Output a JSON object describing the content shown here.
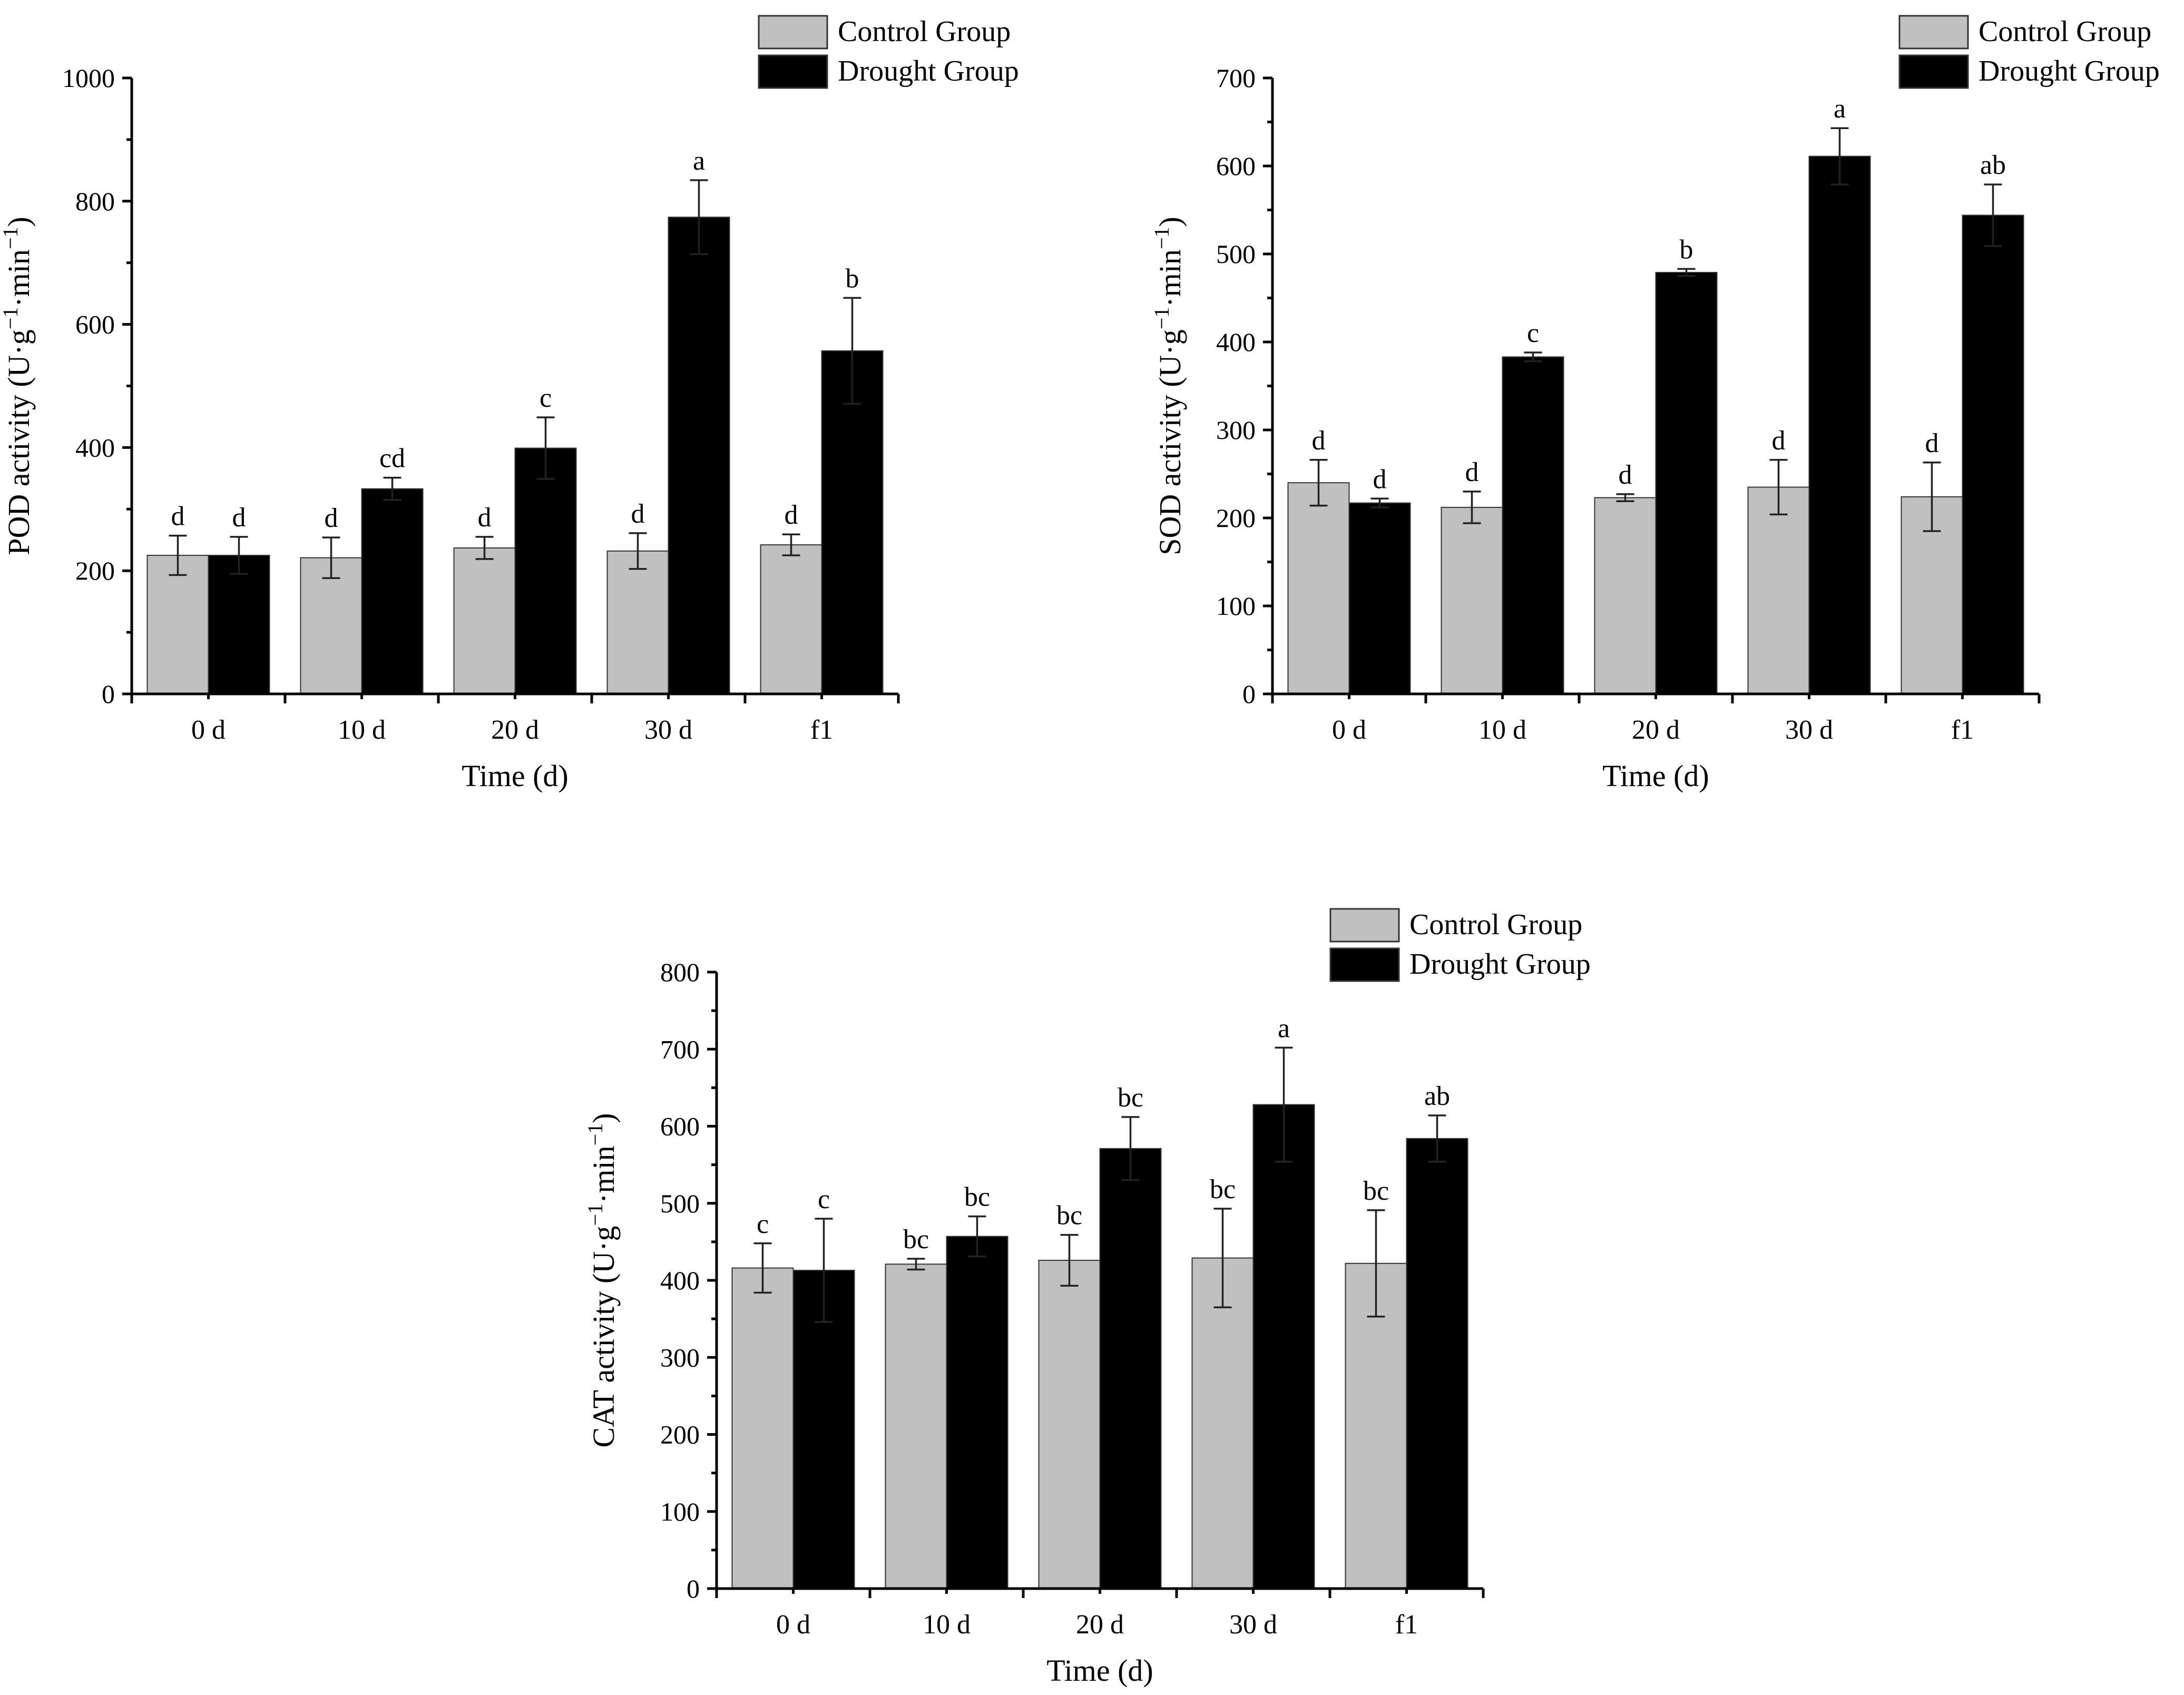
{
  "figure": {
    "legend_labels": [
      "Control Group",
      "Drought Group"
    ],
    "colors": {
      "control": "#c0c0c0",
      "drought": "#000000"
    }
  },
  "chart_data": [
    {
      "type": "bar",
      "panel": "POD",
      "categories": [
        "0 d",
        "10 d",
        "20 d",
        "30 d",
        "f1"
      ],
      "xlabel": "Time (d)",
      "ylabel": "POD activity (U·g⁻¹·min⁻¹)",
      "ylim": [
        0,
        1000
      ],
      "yticks": [
        0,
        200,
        400,
        600,
        800,
        1000
      ],
      "legend_position": "top-right",
      "series": [
        {
          "name": "Control Group",
          "values": [
            225,
            221,
            237,
            232,
            242
          ],
          "errors": [
            32,
            33,
            18,
            29,
            17
          ],
          "labels": [
            "d",
            "d",
            "d",
            "d",
            "d"
          ]
        },
        {
          "name": "Drought Group",
          "values": [
            225,
            333,
            399,
            774,
            557
          ],
          "errors": [
            30,
            18,
            50,
            60,
            86
          ],
          "labels": [
            "d",
            "cd",
            "c",
            "a",
            "b"
          ]
        }
      ]
    },
    {
      "type": "bar",
      "panel": "SOD",
      "categories": [
        "0 d",
        "10 d",
        "20 d",
        "30 d",
        "f1"
      ],
      "xlabel": "Time (d)",
      "ylabel": "SOD activity (U·g⁻¹·min⁻¹)",
      "ylim": [
        0,
        700
      ],
      "yticks": [
        0,
        100,
        200,
        300,
        400,
        500,
        600,
        700
      ],
      "legend_position": "top-right",
      "series": [
        {
          "name": "Control Group",
          "values": [
            240,
            212,
            223,
            235,
            224
          ],
          "errors": [
            26,
            18,
            4,
            31,
            39
          ],
          "labels": [
            "d",
            "d",
            "d",
            "d",
            "d"
          ]
        },
        {
          "name": "Drought Group",
          "values": [
            217,
            383,
            479,
            611,
            544
          ],
          "errors": [
            5,
            5,
            4,
            32,
            35
          ],
          "labels": [
            "d",
            "c",
            "b",
            "a",
            "ab"
          ]
        }
      ]
    },
    {
      "type": "bar",
      "panel": "CAT",
      "categories": [
        "0 d",
        "10 d",
        "20 d",
        "30 d",
        "f1"
      ],
      "xlabel": "Time (d)",
      "ylabel": "CAT activity (U·g⁻¹·min⁻¹)",
      "ylim": [
        0,
        800
      ],
      "yticks": [
        0,
        100,
        200,
        300,
        400,
        500,
        600,
        700,
        800
      ],
      "legend_position": "top-right",
      "series": [
        {
          "name": "Control Group",
          "values": [
            416,
            421,
            426,
            429,
            422
          ],
          "errors": [
            32,
            7,
            33,
            64,
            69
          ],
          "labels": [
            "c",
            "bc",
            "bc",
            "bc",
            "bc"
          ]
        },
        {
          "name": "Drought Group",
          "values": [
            413,
            457,
            571,
            628,
            584
          ],
          "errors": [
            67,
            26,
            41,
            74,
            30
          ],
          "labels": [
            "c",
            "bc",
            "bc",
            "a",
            "ab"
          ]
        }
      ]
    }
  ]
}
